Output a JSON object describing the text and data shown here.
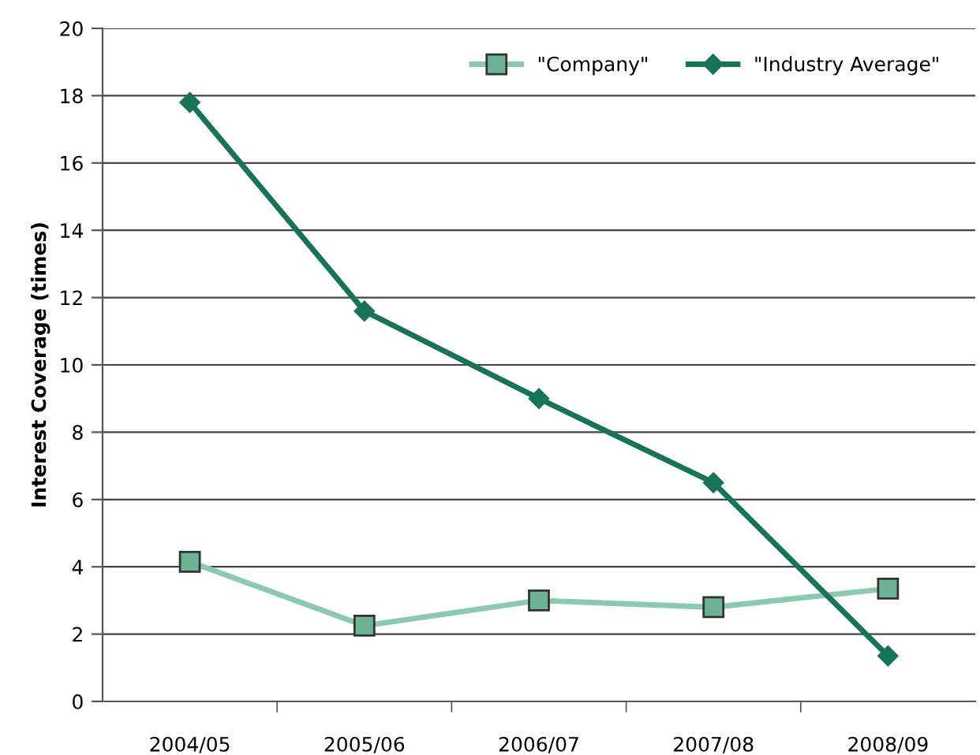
{
  "chart_data": {
    "type": "line",
    "ylabel": "Interest Coverage (times)",
    "categories": [
      "2004/05",
      "2005/06",
      "2006/07",
      "2007/08",
      "2008/09"
    ],
    "series": [
      {
        "name": "\"Company\"",
        "color": "#8cc9b0",
        "marker": "square",
        "values": [
          4.15,
          2.25,
          3.0,
          2.8,
          3.35
        ]
      },
      {
        "name": "\"Industry Average\"",
        "color": "#17745a",
        "marker": "diamond",
        "values": [
          17.8,
          11.6,
          9.0,
          6.5,
          1.35
        ]
      }
    ],
    "ylim": [
      0,
      20
    ],
    "yticks": [
      0,
      2,
      4,
      6,
      8,
      10,
      12,
      14,
      16,
      18,
      20
    ],
    "grid": "y",
    "legend": "top right"
  }
}
